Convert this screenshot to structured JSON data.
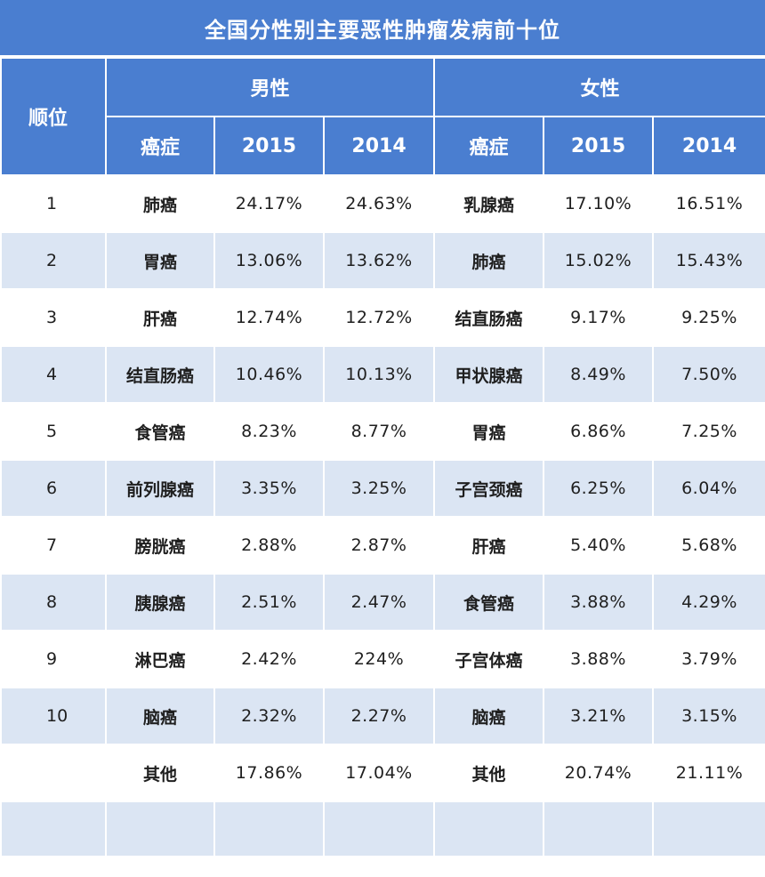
{
  "title": "全国分性别主要恶性肿瘤发病前十位",
  "header": {
    "rank": "顺位",
    "male": "男性",
    "female": "女性",
    "cancer": "癌症",
    "y2015": "2015",
    "y2014": "2014"
  },
  "rows": [
    {
      "rank": "1",
      "m_name": "肺癌",
      "m_2015": "24.17%",
      "m_2014": "24.63%",
      "f_name": "乳腺癌",
      "f_2015": "17.10%",
      "f_2014": "16.51%"
    },
    {
      "rank": "2",
      "m_name": "胃癌",
      "m_2015": "13.06%",
      "m_2014": "13.62%",
      "f_name": "肺癌",
      "f_2015": "15.02%",
      "f_2014": "15.43%"
    },
    {
      "rank": "3",
      "m_name": "肝癌",
      "m_2015": "12.74%",
      "m_2014": "12.72%",
      "f_name": "结直肠癌",
      "f_2015": "9.17%",
      "f_2014": "9.25%"
    },
    {
      "rank": "4",
      "m_name": "结直肠癌",
      "m_2015": "10.46%",
      "m_2014": "10.13%",
      "f_name": "甲状腺癌",
      "f_2015": "8.49%",
      "f_2014": "7.50%"
    },
    {
      "rank": "5",
      "m_name": "食管癌",
      "m_2015": "8.23%",
      "m_2014": "8.77%",
      "f_name": "胃癌",
      "f_2015": "6.86%",
      "f_2014": "7.25%"
    },
    {
      "rank": "6",
      "m_name": "前列腺癌",
      "m_2015": "3.35%",
      "m_2014": "3.25%",
      "f_name": "子宫颈癌",
      "f_2015": "6.25%",
      "f_2014": "6.04%"
    },
    {
      "rank": "7",
      "m_name": "膀胱癌",
      "m_2015": "2.88%",
      "m_2014": "2.87%",
      "f_name": "肝癌",
      "f_2015": "5.40%",
      "f_2014": "5.68%"
    },
    {
      "rank": "8",
      "m_name": "胰腺癌",
      "m_2015": "2.51%",
      "m_2014": "2.47%",
      "f_name": "食管癌",
      "f_2015": "3.88%",
      "f_2014": "4.29%"
    },
    {
      "rank": "9",
      "m_name": "淋巴癌",
      "m_2015": "2.42%",
      "m_2014": "224%",
      "f_name": "子宫体癌",
      "f_2015": "3.88%",
      "f_2014": "3.79%"
    },
    {
      "rank": "10",
      "m_name": "脑癌",
      "m_2015": "2.32%",
      "m_2014": "2.27%",
      "f_name": "脑癌",
      "f_2015": "3.21%",
      "f_2014": "3.15%"
    },
    {
      "rank": "",
      "m_name": "其他",
      "m_2015": "17.86%",
      "m_2014": "17.04%",
      "f_name": "其他",
      "f_2015": "20.74%",
      "f_2014": "21.11%"
    }
  ],
  "colors": {
    "header_bg": "#4a7ed0",
    "alt_row_bg": "#dbe5f3",
    "row_bg": "#ffffff"
  }
}
